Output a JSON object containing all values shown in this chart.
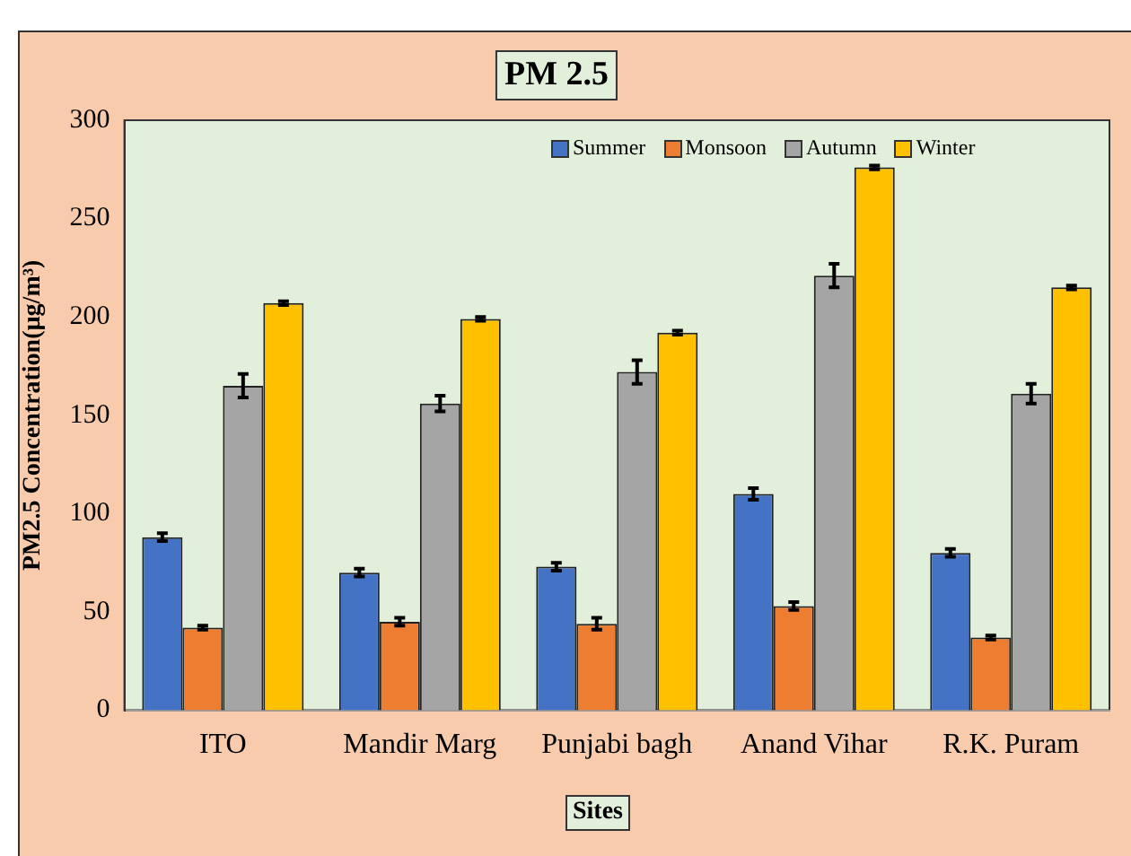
{
  "chart_data": {
    "type": "bar",
    "title": "PM 2.5",
    "xlabel": "Sites",
    "ylabel": "PM2.5 Concentration(µg/m³)",
    "categories": [
      "ITO",
      "Mandir Marg",
      "Punjabi bagh",
      "Anand Vihar",
      "R.K. Puram"
    ],
    "series": [
      {
        "name": "Summer",
        "color": "#4472c4",
        "values": [
          88,
          70,
          73,
          110,
          80
        ],
        "errors": [
          2,
          2,
          2,
          3,
          2
        ]
      },
      {
        "name": "Monsoon",
        "color": "#ed7d31",
        "values": [
          42,
          45,
          44,
          53,
          37
        ],
        "errors": [
          1,
          2,
          3,
          2,
          1
        ]
      },
      {
        "name": "Autumn",
        "color": "#a5a5a5",
        "values": [
          165,
          156,
          172,
          221,
          161
        ],
        "errors": [
          6,
          4,
          6,
          6,
          5
        ]
      },
      {
        "name": "Winter",
        "color": "#ffc000",
        "values": [
          207,
          199,
          192,
          276,
          215
        ],
        "errors": [
          1,
          1,
          1,
          1,
          1
        ]
      }
    ],
    "ylim": [
      0,
      300
    ],
    "yticks": [
      0,
      50,
      100,
      150,
      200,
      250,
      300
    ],
    "grid": false,
    "legend": "top right"
  }
}
